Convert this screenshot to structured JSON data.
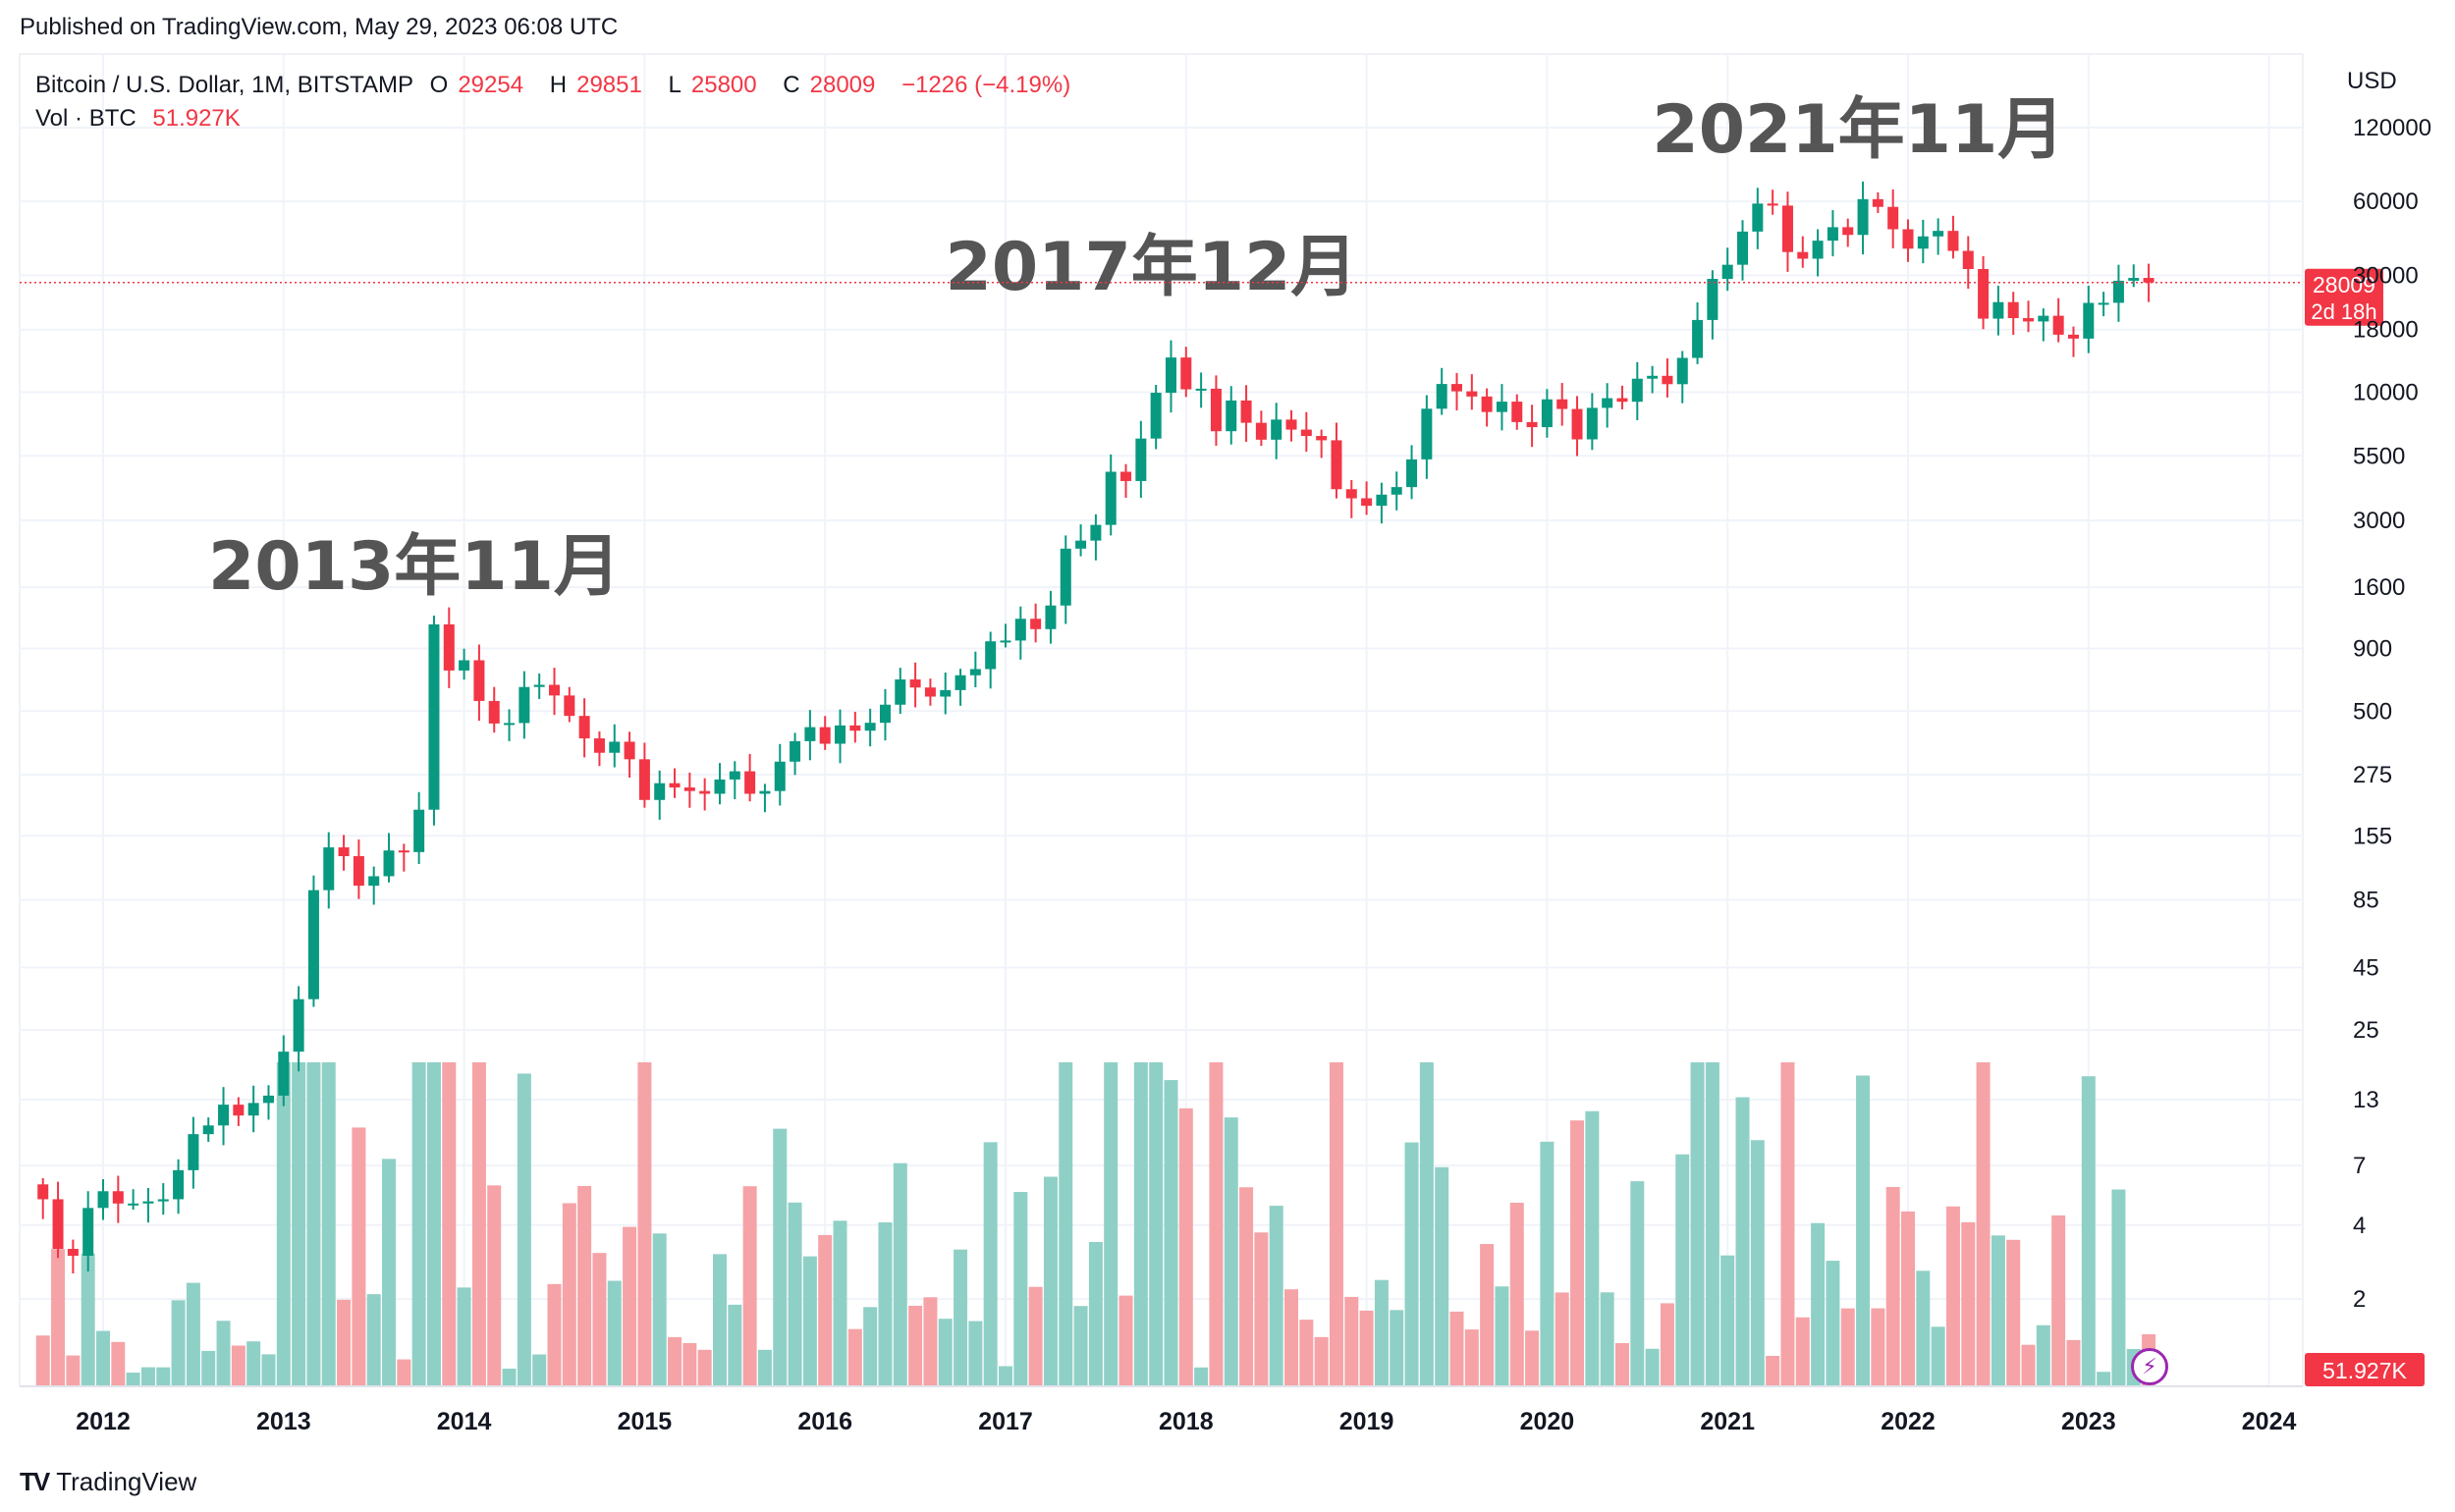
{
  "header": {
    "published": "Published on TradingView.com, May 29, 2023 06:08 UTC"
  },
  "legend": {
    "symbol": "Bitcoin / U.S. Dollar, 1M, BITSTAMP",
    "o_label": "O",
    "o_value": "29254",
    "h_label": "H",
    "h_value": "29851",
    "l_label": "L",
    "l_value": "25800",
    "c_label": "C",
    "c_value": "28009",
    "change": "−1226 (−4.19%)",
    "vol_label": "Vol · BTC",
    "vol_value": "51.927K"
  },
  "price_badge": {
    "price": "28009",
    "countdown": "2d 18h",
    "color": "#f23645"
  },
  "volume_badge": {
    "value": "51.927K",
    "color": "#f23645"
  },
  "colors": {
    "up": "#089981",
    "down": "#f23645",
    "vol_up": "#8fd0c6",
    "vol_down": "#f5a3a7",
    "grid": "#f0f3fa",
    "annotation": "#555555"
  },
  "footer": {
    "brand": "TradingView",
    "brand_logo": "TV",
    "bolt_icon": "lightning-icon"
  },
  "chart_data": {
    "type": "candlestick",
    "currency": "USD",
    "scale": "log",
    "y_ticks": [
      120000,
      60000,
      30000,
      18000,
      10000,
      5500,
      3000,
      1600,
      900,
      500,
      275,
      155,
      85,
      45,
      25,
      13,
      7,
      4,
      2
    ],
    "x_ticks": [
      "2012",
      "2013",
      "2014",
      "2015",
      "2016",
      "2017",
      "2018",
      "2019",
      "2020",
      "2021",
      "2022",
      "2023",
      "2024"
    ],
    "annotations": [
      {
        "text": "2013年11月",
        "date": "2013-11"
      },
      {
        "text": "2017年12月",
        "date": "2017-12"
      },
      {
        "text": "2021年11月",
        "date": "2021-11"
      }
    ],
    "last_price": 28009,
    "monthly_closes": [
      {
        "date": "2011-09",
        "c": 5.1
      },
      {
        "date": "2011-10",
        "c": 3.2
      },
      {
        "date": "2011-11",
        "c": 3.0
      },
      {
        "date": "2011-12",
        "c": 4.7
      },
      {
        "date": "2012-01",
        "c": 5.5
      },
      {
        "date": "2012-02",
        "c": 4.9
      },
      {
        "date": "2012-03",
        "c": 4.9
      },
      {
        "date": "2012-04",
        "c": 5.0
      },
      {
        "date": "2012-05",
        "c": 5.1
      },
      {
        "date": "2012-06",
        "c": 6.7
      },
      {
        "date": "2012-07",
        "c": 9.4
      },
      {
        "date": "2012-08",
        "c": 10.2
      },
      {
        "date": "2012-09",
        "c": 12.4
      },
      {
        "date": "2012-10",
        "c": 11.2
      },
      {
        "date": "2012-11",
        "c": 12.6
      },
      {
        "date": "2012-12",
        "c": 13.5
      },
      {
        "date": "2013-01",
        "c": 20.4
      },
      {
        "date": "2013-02",
        "c": 33.4
      },
      {
        "date": "2013-03",
        "c": 93.0
      },
      {
        "date": "2013-04",
        "c": 139.0
      },
      {
        "date": "2013-05",
        "c": 128.0
      },
      {
        "date": "2013-06",
        "c": 97.0
      },
      {
        "date": "2013-07",
        "c": 106.0
      },
      {
        "date": "2013-08",
        "c": 135.0
      },
      {
        "date": "2013-09",
        "c": 133.0
      },
      {
        "date": "2013-10",
        "c": 198.0
      },
      {
        "date": "2013-11",
        "c": 1129.0
      },
      {
        "date": "2013-12",
        "c": 732.0
      },
      {
        "date": "2014-01",
        "c": 806.0
      },
      {
        "date": "2014-02",
        "c": 550.0
      },
      {
        "date": "2014-03",
        "c": 445.0
      },
      {
        "date": "2014-04",
        "c": 447.0
      },
      {
        "date": "2014-05",
        "c": 627.0
      },
      {
        "date": "2014-06",
        "c": 640.0
      },
      {
        "date": "2014-07",
        "c": 579.0
      },
      {
        "date": "2014-08",
        "c": 478.0
      },
      {
        "date": "2014-09",
        "c": 387.0
      },
      {
        "date": "2014-10",
        "c": 338.0
      },
      {
        "date": "2014-11",
        "c": 375.0
      },
      {
        "date": "2014-12",
        "c": 318.0
      },
      {
        "date": "2015-01",
        "c": 217.0
      },
      {
        "date": "2015-02",
        "c": 254.0
      },
      {
        "date": "2015-03",
        "c": 244.0
      },
      {
        "date": "2015-04",
        "c": 236.0
      },
      {
        "date": "2015-05",
        "c": 230.0
      },
      {
        "date": "2015-06",
        "c": 263.0
      },
      {
        "date": "2015-07",
        "c": 284.0
      },
      {
        "date": "2015-08",
        "c": 230.0
      },
      {
        "date": "2015-09",
        "c": 236.0
      },
      {
        "date": "2015-10",
        "c": 311.0
      },
      {
        "date": "2015-11",
        "c": 377.0
      },
      {
        "date": "2015-12",
        "c": 430.0
      },
      {
        "date": "2016-01",
        "c": 368.0
      },
      {
        "date": "2016-02",
        "c": 437.0
      },
      {
        "date": "2016-03",
        "c": 416.0
      },
      {
        "date": "2016-04",
        "c": 448.0
      },
      {
        "date": "2016-05",
        "c": 531.0
      },
      {
        "date": "2016-06",
        "c": 673.0
      },
      {
        "date": "2016-07",
        "c": 624.0
      },
      {
        "date": "2016-08",
        "c": 573.0
      },
      {
        "date": "2016-09",
        "c": 609.0
      },
      {
        "date": "2016-10",
        "c": 700.0
      },
      {
        "date": "2016-11",
        "c": 742.0
      },
      {
        "date": "2016-12",
        "c": 963.0
      },
      {
        "date": "2017-01",
        "c": 970.0
      },
      {
        "date": "2017-02",
        "c": 1190.0
      },
      {
        "date": "2017-03",
        "c": 1080.0
      },
      {
        "date": "2017-04",
        "c": 1348.0
      },
      {
        "date": "2017-05",
        "c": 2300.0
      },
      {
        "date": "2017-06",
        "c": 2480.0
      },
      {
        "date": "2017-07",
        "c": 2875.0
      },
      {
        "date": "2017-08",
        "c": 4735.0
      },
      {
        "date": "2017-09",
        "c": 4340.0
      },
      {
        "date": "2017-10",
        "c": 6468.0
      },
      {
        "date": "2017-11",
        "c": 9947.0
      },
      {
        "date": "2017-12",
        "c": 13850.0
      },
      {
        "date": "2018-01",
        "c": 10270.0
      },
      {
        "date": "2018-02",
        "c": 10330.0
      },
      {
        "date": "2018-03",
        "c": 6930.0
      },
      {
        "date": "2018-04",
        "c": 9250.0
      },
      {
        "date": "2018-05",
        "c": 7500.0
      },
      {
        "date": "2018-06",
        "c": 6400.0
      },
      {
        "date": "2018-07",
        "c": 7730.0
      },
      {
        "date": "2018-08",
        "c": 7035.0
      },
      {
        "date": "2018-09",
        "c": 6626.0
      },
      {
        "date": "2018-10",
        "c": 6365.0
      },
      {
        "date": "2018-11",
        "c": 4020.0
      },
      {
        "date": "2018-12",
        "c": 3690.0
      },
      {
        "date": "2019-01",
        "c": 3440.0
      },
      {
        "date": "2019-02",
        "c": 3820.0
      },
      {
        "date": "2019-03",
        "c": 4100.0
      },
      {
        "date": "2019-04",
        "c": 5320.0
      },
      {
        "date": "2019-05",
        "c": 8560.0
      },
      {
        "date": "2019-06",
        "c": 10800.0
      },
      {
        "date": "2019-07",
        "c": 10080.0
      },
      {
        "date": "2019-08",
        "c": 9600.0
      },
      {
        "date": "2019-09",
        "c": 8300.0
      },
      {
        "date": "2019-10",
        "c": 9150.0
      },
      {
        "date": "2019-11",
        "c": 7550.0
      },
      {
        "date": "2019-12",
        "c": 7200.0
      },
      {
        "date": "2020-01",
        "c": 9350.0
      },
      {
        "date": "2020-02",
        "c": 8540.0
      },
      {
        "date": "2020-03",
        "c": 6420.0
      },
      {
        "date": "2020-04",
        "c": 8630.0
      },
      {
        "date": "2020-05",
        "c": 9450.0
      },
      {
        "date": "2020-06",
        "c": 9140.0
      },
      {
        "date": "2020-07",
        "c": 11350.0
      },
      {
        "date": "2020-08",
        "c": 11660.0
      },
      {
        "date": "2020-09",
        "c": 10780.0
      },
      {
        "date": "2020-10",
        "c": 13800.0
      },
      {
        "date": "2020-11",
        "c": 19700.0
      },
      {
        "date": "2020-12",
        "c": 28990.0
      },
      {
        "date": "2021-01",
        "c": 33100.0
      },
      {
        "date": "2021-02",
        "c": 45200.0
      },
      {
        "date": "2021-03",
        "c": 58800.0
      },
      {
        "date": "2021-04",
        "c": 57700.0
      },
      {
        "date": "2021-05",
        "c": 37300.0
      },
      {
        "date": "2021-06",
        "c": 35040.0
      },
      {
        "date": "2021-07",
        "c": 41500.0
      },
      {
        "date": "2021-08",
        "c": 47100.0
      },
      {
        "date": "2021-09",
        "c": 43800.0
      },
      {
        "date": "2021-10",
        "c": 61300.0
      },
      {
        "date": "2021-11",
        "c": 57000.0
      },
      {
        "date": "2021-12",
        "c": 46200.0
      },
      {
        "date": "2022-01",
        "c": 38500.0
      },
      {
        "date": "2022-02",
        "c": 43200.0
      },
      {
        "date": "2022-03",
        "c": 45500.0
      },
      {
        "date": "2022-04",
        "c": 37700.0
      },
      {
        "date": "2022-05",
        "c": 31800.0
      },
      {
        "date": "2022-06",
        "c": 19950.0
      },
      {
        "date": "2022-07",
        "c": 23300.0
      },
      {
        "date": "2022-08",
        "c": 20050.0
      },
      {
        "date": "2022-09",
        "c": 19430.0
      },
      {
        "date": "2022-10",
        "c": 20500.0
      },
      {
        "date": "2022-11",
        "c": 17160.0
      },
      {
        "date": "2022-12",
        "c": 16540.0
      },
      {
        "date": "2023-01",
        "c": 23130.0
      },
      {
        "date": "2023-02",
        "c": 23150.0
      },
      {
        "date": "2023-03",
        "c": 28480.0
      },
      {
        "date": "2023-04",
        "c": 29250.0
      },
      {
        "date": "2023-05",
        "c": 28009.0
      }
    ]
  }
}
